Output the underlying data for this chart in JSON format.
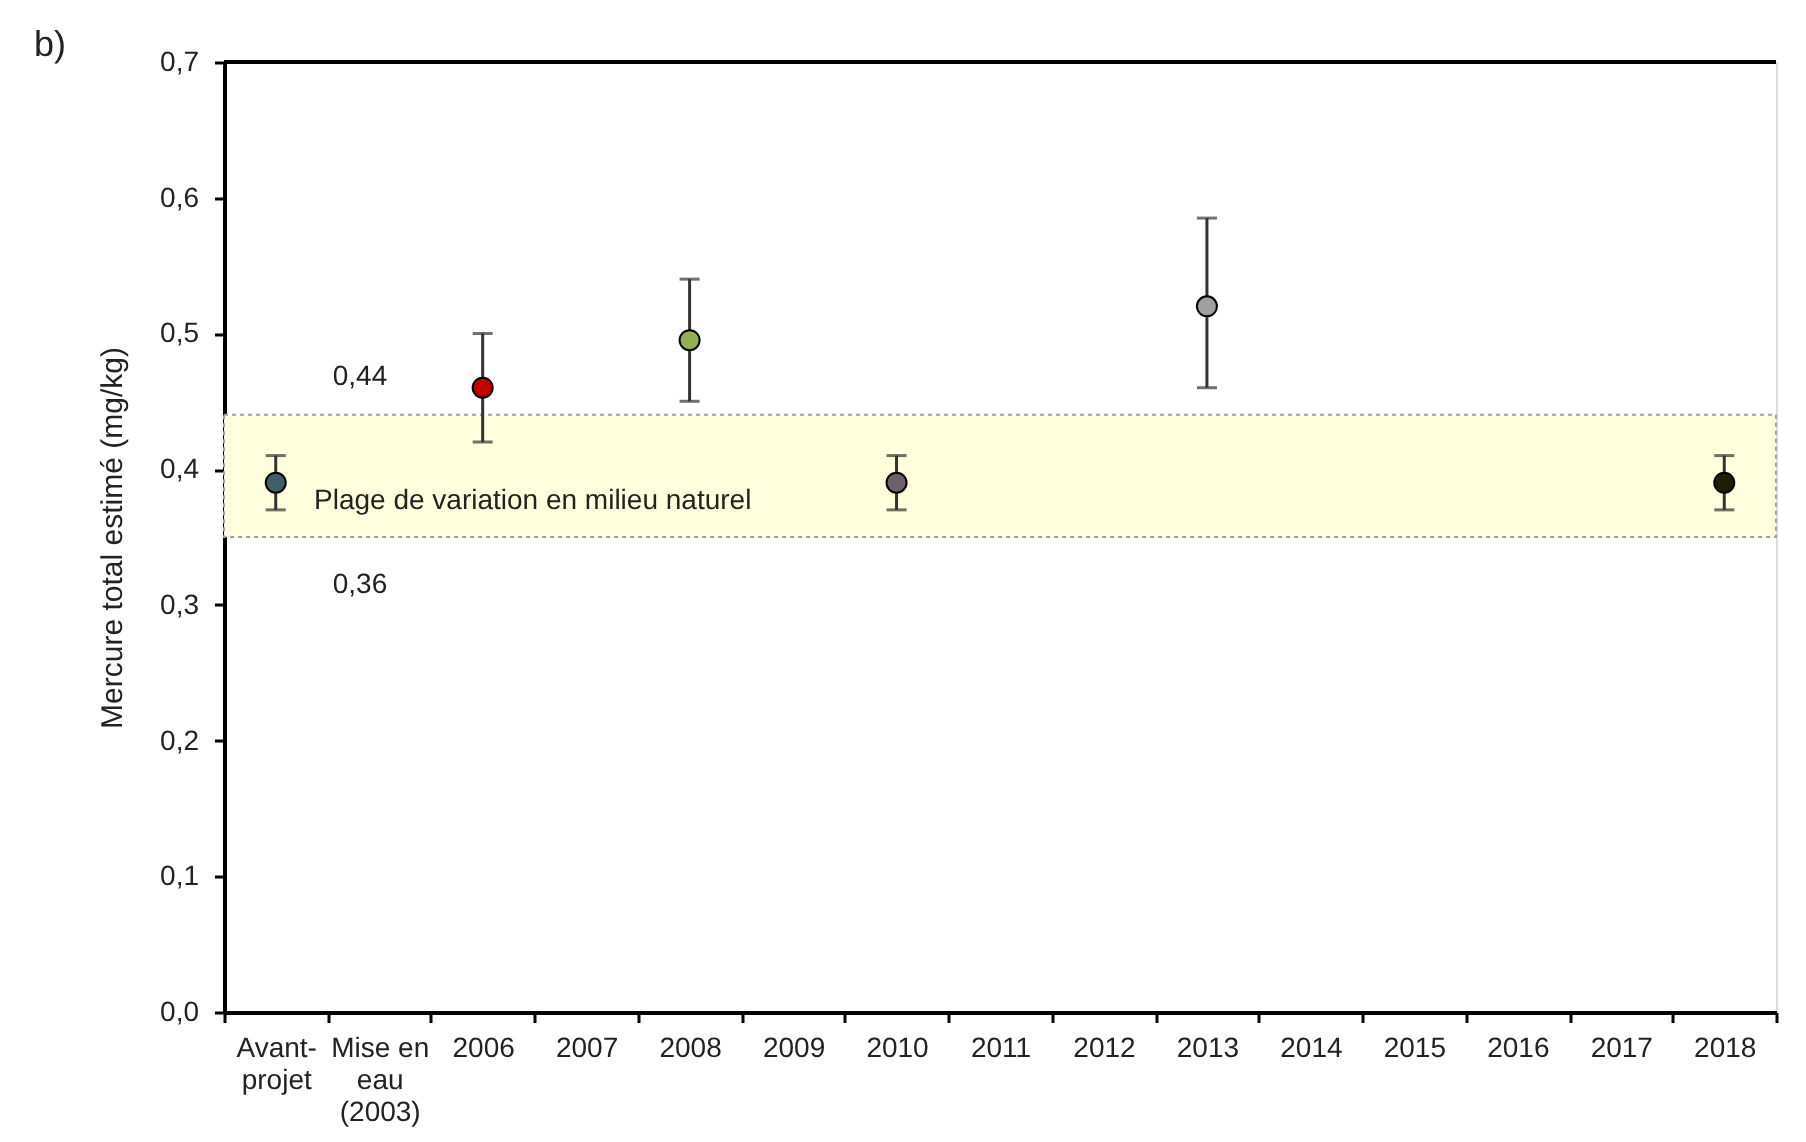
{
  "chart_data": {
    "type": "scatter",
    "title": "b)",
    "ylabel": "Mercure total estimé (mg/kg)",
    "categories": [
      "Avant-projet",
      "Mise en eau (2003)",
      "2006",
      "2007",
      "2008",
      "2009",
      "2010",
      "2011",
      "2012",
      "2013",
      "2014",
      "2015",
      "2016",
      "2017",
      "2018"
    ],
    "values": [
      0.39,
      null,
      0.46,
      null,
      0.495,
      null,
      0.39,
      null,
      null,
      0.52,
      null,
      null,
      null,
      null,
      0.39
    ],
    "errors": [
      [
        0.37,
        0.41
      ],
      null,
      [
        0.42,
        0.5
      ],
      null,
      [
        0.45,
        0.54
      ],
      null,
      [
        0.37,
        0.41
      ],
      null,
      null,
      [
        0.46,
        0.585
      ],
      null,
      null,
      null,
      null,
      [
        0.37,
        0.41
      ]
    ],
    "colors": [
      "#3f5e6a",
      null,
      "#c00000",
      null,
      "#92b050",
      null,
      "#6f5f6a",
      null,
      null,
      "#a0a0a0",
      null,
      null,
      null,
      null,
      "#1f1f00"
    ],
    "ylim": [
      0,
      0.7
    ],
    "yticks": [
      {
        "value": 0,
        "label": "0,0"
      },
      {
        "value": 0.1,
        "label": "0,1"
      },
      {
        "value": 0.2,
        "label": "0,2"
      },
      {
        "value": 0.3,
        "label": "0,3"
      },
      {
        "value": 0.4,
        "label": "0,4"
      },
      {
        "value": 0.5,
        "label": "0,5"
      },
      {
        "value": 0.6,
        "label": "0,6"
      },
      {
        "value": 0.7,
        "label": "0,7"
      }
    ],
    "bands": [
      {
        "axis": "y",
        "from": 0.35,
        "to": 0.44,
        "label": "Plage de variation en milieu naturel",
        "color": "#ffffdd"
      }
    ],
    "annotations": [
      {
        "text": "0,44",
        "y": 0.44
      },
      "0,36"
    ],
    "marker": "circle"
  }
}
